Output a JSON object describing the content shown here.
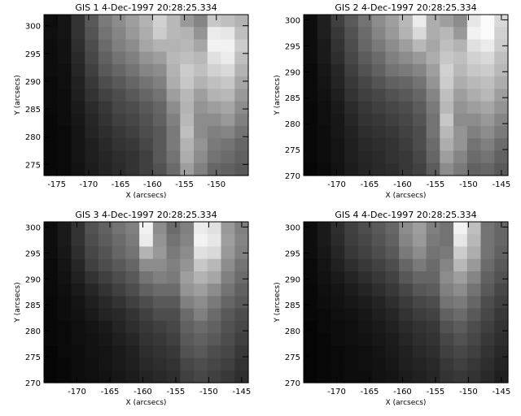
{
  "figure": {
    "background": "#ffffff"
  },
  "chart_data": [
    {
      "type": "heatmap",
      "title": "GIS 1  4-Dec-1997 20:28:25.334",
      "xlabel": "X (arcsecs)",
      "ylabel": "Y (arcsecs)",
      "xlim": [
        -177,
        -145
      ],
      "ylim": [
        273,
        302
      ],
      "xticks": [
        -175,
        -170,
        -165,
        -160,
        -155,
        -150
      ],
      "yticks": [
        275,
        280,
        285,
        290,
        295,
        300
      ],
      "colormap": "grayscale",
      "grid": false,
      "intensity": [
        [
          0.05,
          0.08,
          0.2,
          0.35,
          0.48,
          0.55,
          0.62,
          0.7,
          0.82,
          0.72,
          0.6,
          0.52,
          0.78,
          0.75,
          0.7
        ],
        [
          0.06,
          0.08,
          0.2,
          0.33,
          0.45,
          0.52,
          0.6,
          0.68,
          0.8,
          0.72,
          0.7,
          0.58,
          0.92,
          0.9,
          0.75
        ],
        [
          0.05,
          0.07,
          0.18,
          0.3,
          0.42,
          0.5,
          0.55,
          0.65,
          0.7,
          0.7,
          0.72,
          0.65,
          0.95,
          0.95,
          0.8
        ],
        [
          0.05,
          0.07,
          0.16,
          0.28,
          0.38,
          0.45,
          0.5,
          0.58,
          0.62,
          0.72,
          0.75,
          0.72,
          0.88,
          0.92,
          0.75
        ],
        [
          0.05,
          0.06,
          0.15,
          0.25,
          0.35,
          0.4,
          0.45,
          0.52,
          0.55,
          0.7,
          0.8,
          0.75,
          0.82,
          0.85,
          0.7
        ],
        [
          0.04,
          0.06,
          0.13,
          0.22,
          0.3,
          0.35,
          0.4,
          0.45,
          0.5,
          0.68,
          0.78,
          0.7,
          0.75,
          0.78,
          0.65
        ],
        [
          0.04,
          0.05,
          0.12,
          0.2,
          0.26,
          0.3,
          0.35,
          0.4,
          0.45,
          0.62,
          0.72,
          0.62,
          0.7,
          0.72,
          0.6
        ],
        [
          0.04,
          0.05,
          0.1,
          0.17,
          0.22,
          0.28,
          0.3,
          0.35,
          0.4,
          0.55,
          0.7,
          0.58,
          0.62,
          0.65,
          0.55
        ],
        [
          0.03,
          0.05,
          0.09,
          0.15,
          0.2,
          0.25,
          0.28,
          0.32,
          0.38,
          0.5,
          0.72,
          0.55,
          0.55,
          0.6,
          0.5
        ],
        [
          0.03,
          0.04,
          0.08,
          0.14,
          0.18,
          0.22,
          0.25,
          0.3,
          0.35,
          0.48,
          0.75,
          0.55,
          0.5,
          0.52,
          0.45
        ],
        [
          0.03,
          0.04,
          0.08,
          0.12,
          0.16,
          0.2,
          0.22,
          0.28,
          0.35,
          0.48,
          0.7,
          0.58,
          0.48,
          0.45,
          0.4
        ],
        [
          0.03,
          0.04,
          0.08,
          0.12,
          0.15,
          0.18,
          0.2,
          0.25,
          0.35,
          0.45,
          0.68,
          0.55,
          0.45,
          0.42,
          0.38
        ],
        [
          0.03,
          0.04,
          0.07,
          0.11,
          0.14,
          0.17,
          0.2,
          0.25,
          0.32,
          0.42,
          0.62,
          0.5,
          0.4,
          0.38,
          0.35
        ]
      ]
    },
    {
      "type": "heatmap",
      "title": "GIS 2  4-Dec-1997 20:28:25.334",
      "xlabel": "X (arcsecs)",
      "ylabel": "Y (arcsecs)",
      "xlim": [
        -175,
        -144
      ],
      "ylim": [
        270,
        301
      ],
      "xticks": [
        -170,
        -165,
        -160,
        -155,
        -150,
        -145
      ],
      "yticks": [
        270,
        275,
        280,
        285,
        290,
        295,
        300
      ],
      "colormap": "grayscale",
      "grid": false,
      "intensity": [
        [
          0.05,
          0.12,
          0.25,
          0.35,
          0.45,
          0.55,
          0.62,
          0.72,
          0.92,
          0.68,
          0.62,
          0.55,
          0.9,
          0.98,
          0.85
        ],
        [
          0.05,
          0.12,
          0.22,
          0.32,
          0.42,
          0.52,
          0.6,
          0.7,
          0.85,
          0.68,
          0.72,
          0.6,
          0.95,
          0.98,
          0.82
        ],
        [
          0.05,
          0.1,
          0.2,
          0.3,
          0.4,
          0.48,
          0.55,
          0.62,
          0.72,
          0.65,
          0.75,
          0.7,
          0.88,
          0.92,
          0.8
        ],
        [
          0.05,
          0.1,
          0.18,
          0.28,
          0.36,
          0.42,
          0.5,
          0.55,
          0.6,
          0.68,
          0.78,
          0.75,
          0.82,
          0.85,
          0.75
        ],
        [
          0.04,
          0.09,
          0.15,
          0.25,
          0.32,
          0.38,
          0.45,
          0.48,
          0.52,
          0.62,
          0.82,
          0.72,
          0.78,
          0.8,
          0.72
        ],
        [
          0.04,
          0.08,
          0.14,
          0.22,
          0.28,
          0.33,
          0.38,
          0.4,
          0.45,
          0.58,
          0.8,
          0.68,
          0.72,
          0.75,
          0.68
        ],
        [
          0.04,
          0.07,
          0.12,
          0.2,
          0.25,
          0.28,
          0.32,
          0.35,
          0.4,
          0.52,
          0.75,
          0.62,
          0.68,
          0.72,
          0.62
        ],
        [
          0.03,
          0.06,
          0.1,
          0.17,
          0.22,
          0.25,
          0.28,
          0.3,
          0.36,
          0.48,
          0.72,
          0.58,
          0.62,
          0.65,
          0.58
        ],
        [
          0.03,
          0.06,
          0.09,
          0.15,
          0.2,
          0.22,
          0.25,
          0.28,
          0.33,
          0.45,
          0.78,
          0.55,
          0.55,
          0.6,
          0.52
        ],
        [
          0.03,
          0.05,
          0.09,
          0.13,
          0.18,
          0.2,
          0.22,
          0.26,
          0.3,
          0.45,
          0.72,
          0.58,
          0.5,
          0.55,
          0.48
        ],
        [
          0.03,
          0.05,
          0.08,
          0.12,
          0.16,
          0.18,
          0.2,
          0.24,
          0.3,
          0.42,
          0.68,
          0.58,
          0.45,
          0.5,
          0.42
        ],
        [
          0.03,
          0.05,
          0.08,
          0.12,
          0.15,
          0.17,
          0.2,
          0.22,
          0.28,
          0.4,
          0.62,
          0.52,
          0.42,
          0.45,
          0.38
        ],
        [
          0.02,
          0.04,
          0.07,
          0.11,
          0.14,
          0.16,
          0.18,
          0.22,
          0.26,
          0.36,
          0.55,
          0.48,
          0.38,
          0.4,
          0.35
        ]
      ]
    },
    {
      "type": "heatmap",
      "title": "GIS 3  4-Dec-1997 20:28:25.334",
      "xlabel": "X (arcsecs)",
      "ylabel": "Y (arcsecs)",
      "xlim": [
        -175,
        -144
      ],
      "ylim": [
        270,
        301
      ],
      "xticks": [
        -170,
        -165,
        -160,
        -155,
        -150,
        -145
      ],
      "yticks": [
        270,
        275,
        280,
        285,
        290,
        295,
        300
      ],
      "colormap": "grayscale",
      "grid": false,
      "intensity": [
        [
          0.05,
          0.1,
          0.2,
          0.32,
          0.38,
          0.45,
          0.5,
          0.95,
          0.55,
          0.42,
          0.5,
          0.92,
          0.88,
          0.6,
          0.5
        ],
        [
          0.05,
          0.1,
          0.2,
          0.3,
          0.36,
          0.42,
          0.48,
          0.92,
          0.58,
          0.45,
          0.52,
          0.95,
          0.9,
          0.62,
          0.52
        ],
        [
          0.05,
          0.09,
          0.18,
          0.28,
          0.33,
          0.4,
          0.45,
          0.7,
          0.6,
          0.48,
          0.55,
          0.88,
          0.85,
          0.6,
          0.5
        ],
        [
          0.04,
          0.08,
          0.15,
          0.25,
          0.3,
          0.35,
          0.4,
          0.55,
          0.55,
          0.5,
          0.58,
          0.78,
          0.72,
          0.55,
          0.45
        ],
        [
          0.04,
          0.07,
          0.13,
          0.2,
          0.25,
          0.3,
          0.35,
          0.45,
          0.5,
          0.48,
          0.62,
          0.7,
          0.65,
          0.5,
          0.42
        ],
        [
          0.04,
          0.06,
          0.1,
          0.15,
          0.2,
          0.25,
          0.3,
          0.38,
          0.42,
          0.42,
          0.58,
          0.62,
          0.55,
          0.45,
          0.38
        ],
        [
          0.03,
          0.05,
          0.08,
          0.12,
          0.16,
          0.2,
          0.25,
          0.3,
          0.35,
          0.35,
          0.5,
          0.55,
          0.48,
          0.4,
          0.35
        ],
        [
          0.03,
          0.05,
          0.07,
          0.1,
          0.14,
          0.16,
          0.2,
          0.25,
          0.3,
          0.3,
          0.42,
          0.5,
          0.42,
          0.35,
          0.3
        ],
        [
          0.03,
          0.04,
          0.06,
          0.08,
          0.1,
          0.14,
          0.18,
          0.22,
          0.25,
          0.28,
          0.38,
          0.42,
          0.38,
          0.32,
          0.28
        ],
        [
          0.03,
          0.04,
          0.06,
          0.07,
          0.09,
          0.12,
          0.15,
          0.2,
          0.22,
          0.25,
          0.35,
          0.38,
          0.35,
          0.3,
          0.25
        ],
        [
          0.02,
          0.04,
          0.05,
          0.07,
          0.08,
          0.1,
          0.13,
          0.18,
          0.2,
          0.22,
          0.32,
          0.35,
          0.3,
          0.28,
          0.22
        ],
        [
          0.02,
          0.03,
          0.05,
          0.06,
          0.08,
          0.1,
          0.12,
          0.16,
          0.18,
          0.2,
          0.28,
          0.3,
          0.28,
          0.25,
          0.2
        ],
        [
          0.02,
          0.03,
          0.05,
          0.06,
          0.07,
          0.09,
          0.11,
          0.14,
          0.16,
          0.18,
          0.25,
          0.28,
          0.25,
          0.22,
          0.18
        ]
      ]
    },
    {
      "type": "heatmap",
      "title": "GIS 4  4-Dec-1997 20:28:25.334",
      "xlabel": "X (arcsecs)",
      "ylabel": "Y (arcsecs)",
      "xlim": [
        -175,
        -144
      ],
      "ylim": [
        270,
        301
      ],
      "xticks": [
        -170,
        -165,
        -160,
        -155,
        -150,
        -145
      ],
      "yticks": [
        270,
        275,
        280,
        285,
        290,
        295,
        300
      ],
      "colormap": "grayscale",
      "grid": false,
      "intensity": [
        [
          0.05,
          0.1,
          0.18,
          0.25,
          0.3,
          0.35,
          0.4,
          0.55,
          0.62,
          0.5,
          0.45,
          0.95,
          0.75,
          0.45,
          0.4
        ],
        [
          0.05,
          0.1,
          0.17,
          0.24,
          0.28,
          0.33,
          0.38,
          0.52,
          0.6,
          0.48,
          0.45,
          0.9,
          0.72,
          0.45,
          0.4
        ],
        [
          0.05,
          0.09,
          0.15,
          0.22,
          0.26,
          0.3,
          0.35,
          0.48,
          0.55,
          0.45,
          0.48,
          0.8,
          0.68,
          0.45,
          0.38
        ],
        [
          0.04,
          0.08,
          0.13,
          0.18,
          0.22,
          0.26,
          0.3,
          0.4,
          0.48,
          0.42,
          0.52,
          0.72,
          0.6,
          0.42,
          0.35
        ],
        [
          0.04,
          0.07,
          0.1,
          0.14,
          0.18,
          0.22,
          0.26,
          0.34,
          0.4,
          0.4,
          0.55,
          0.62,
          0.52,
          0.38,
          0.32
        ],
        [
          0.03,
          0.06,
          0.08,
          0.11,
          0.14,
          0.18,
          0.22,
          0.28,
          0.34,
          0.36,
          0.5,
          0.55,
          0.45,
          0.35,
          0.28
        ],
        [
          0.03,
          0.05,
          0.07,
          0.09,
          0.11,
          0.14,
          0.18,
          0.23,
          0.28,
          0.3,
          0.45,
          0.48,
          0.4,
          0.3,
          0.25
        ],
        [
          0.03,
          0.04,
          0.06,
          0.07,
          0.09,
          0.12,
          0.15,
          0.2,
          0.24,
          0.26,
          0.38,
          0.42,
          0.35,
          0.28,
          0.22
        ],
        [
          0.02,
          0.04,
          0.05,
          0.06,
          0.08,
          0.1,
          0.13,
          0.17,
          0.2,
          0.22,
          0.32,
          0.36,
          0.3,
          0.25,
          0.2
        ],
        [
          0.02,
          0.03,
          0.05,
          0.06,
          0.07,
          0.09,
          0.11,
          0.15,
          0.18,
          0.2,
          0.28,
          0.32,
          0.28,
          0.22,
          0.18
        ],
        [
          0.02,
          0.03,
          0.04,
          0.05,
          0.06,
          0.08,
          0.1,
          0.13,
          0.16,
          0.18,
          0.25,
          0.28,
          0.25,
          0.2,
          0.16
        ],
        [
          0.02,
          0.03,
          0.04,
          0.05,
          0.06,
          0.07,
          0.09,
          0.12,
          0.14,
          0.16,
          0.22,
          0.25,
          0.22,
          0.18,
          0.14
        ],
        [
          0.02,
          0.03,
          0.04,
          0.05,
          0.05,
          0.07,
          0.08,
          0.11,
          0.13,
          0.15,
          0.2,
          0.22,
          0.2,
          0.16,
          0.12
        ]
      ]
    }
  ]
}
